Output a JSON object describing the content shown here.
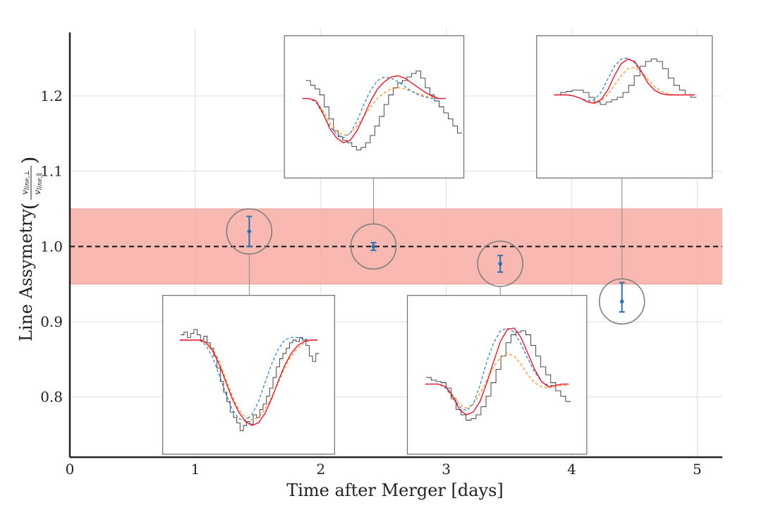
{
  "chart_data": {
    "type": "scatter",
    "xlabel": "Time after Merger [days]",
    "ylabel": "Line Assymetry",
    "ylabel_fraction": {
      "numerator": "v",
      "numerator_sub": "line,⊥",
      "denominator": "v",
      "denominator_sub": "line,∥"
    },
    "xlim": [
      0,
      5.2
    ],
    "ylim": [
      0.72,
      1.29
    ],
    "x_ticks": [
      0,
      1,
      2,
      3,
      4,
      5
    ],
    "y_ticks": [
      0.8,
      0.9,
      1.0,
      1.1,
      1.2
    ],
    "x_tick_labels": [
      "0",
      "1",
      "2",
      "3",
      "4",
      "5"
    ],
    "y_tick_labels": [
      "0.8",
      "0.9",
      "1.0",
      "1.1",
      "1.2"
    ],
    "grid": true,
    "reference_line": {
      "y": 1.0,
      "color": "#111111",
      "style": "dashed"
    },
    "band": {
      "y_low": 0.95,
      "y_high": 1.05,
      "color": "#f7a8a0"
    },
    "points_color": "#2c6fb5",
    "circle_color": "#7a7a7a",
    "points": [
      {
        "x": 1.43,
        "y": 1.02,
        "err_low": 0.02,
        "err_high": 0.02
      },
      {
        "x": 2.42,
        "y": 1.0,
        "err_low": 0.005,
        "err_high": 0.005
      },
      {
        "x": 3.43,
        "y": 0.977,
        "err_low": 0.011,
        "err_high": 0.011
      },
      {
        "x": 4.4,
        "y": 0.927,
        "err_low": 0.014,
        "err_high": 0.025
      }
    ],
    "insets": [
      {
        "point_index": 0,
        "box_x0": 0.74,
        "box_x1": 2.11,
        "box_y_top": 0.935,
        "box_y_bottom": 0.724,
        "spectrum": {
          "type": "absorption",
          "observed": [
            0.2,
            0.18,
            0.22,
            0.19,
            0.16,
            0.2,
            0.24,
            0.21,
            0.26,
            0.3,
            0.36,
            0.45,
            0.55,
            0.63,
            0.7,
            0.78,
            0.82,
            0.86,
            0.92,
            0.88,
            0.85,
            0.87,
            0.8,
            0.82,
            0.76,
            0.72,
            0.66,
            0.6,
            0.52,
            0.44,
            0.38,
            0.34,
            0.3,
            0.26,
            0.24,
            0.25,
            0.22,
            0.24,
            0.28,
            0.36,
            0.4,
            0.34
          ],
          "model_red": [
            0.24,
            0.24,
            0.24,
            0.24,
            0.26,
            0.32,
            0.42,
            0.55,
            0.68,
            0.78,
            0.85,
            0.88,
            0.86,
            0.79,
            0.68,
            0.55,
            0.43,
            0.34,
            0.28,
            0.25,
            0.24,
            0.24
          ],
          "model_blue": [
            0.24,
            0.24,
            0.24,
            0.24,
            0.28,
            0.37,
            0.5,
            0.64,
            0.76,
            0.83,
            0.84,
            0.8,
            0.7,
            0.56,
            0.42,
            0.31,
            0.24,
            0.22,
            0.22,
            0.23,
            0.24,
            0.24
          ],
          "model_orange": [
            0.24,
            0.24,
            0.24,
            0.24,
            0.25,
            0.3,
            0.4,
            0.53,
            0.66,
            0.76,
            0.82,
            0.84,
            0.82,
            0.76,
            0.67,
            0.56,
            0.45,
            0.36,
            0.3,
            0.26,
            0.24,
            0.24
          ]
        }
      },
      {
        "point_index": 1,
        "box_x0": 1.71,
        "box_x1": 3.14,
        "box_y_top": 1.28,
        "box_y_bottom": 1.091,
        "spectrum": {
          "type": "pcygni",
          "observed": [
            0.28,
            0.32,
            0.35,
            0.4,
            0.5,
            0.6,
            0.7,
            0.75,
            0.78,
            0.8,
            0.83,
            0.86,
            0.84,
            0.8,
            0.74,
            0.66,
            0.58,
            0.48,
            0.4,
            0.34,
            0.3,
            0.28,
            0.25,
            0.22,
            0.2,
            0.26,
            0.34,
            0.4,
            0.45,
            0.5,
            0.55,
            0.6,
            0.66,
            0.72
          ],
          "model_red": [
            0.43,
            0.43,
            0.45,
            0.55,
            0.68,
            0.76,
            0.8,
            0.78,
            0.7,
            0.58,
            0.45,
            0.35,
            0.29,
            0.25,
            0.24,
            0.26,
            0.3,
            0.34,
            0.38,
            0.41,
            0.43,
            0.43
          ],
          "model_blue": [
            0.43,
            0.43,
            0.46,
            0.56,
            0.66,
            0.73,
            0.76,
            0.72,
            0.62,
            0.48,
            0.36,
            0.28,
            0.25,
            0.26,
            0.29,
            0.33,
            0.37,
            0.4,
            0.42,
            0.43,
            0.43,
            0.43
          ],
          "model_orange": [
            0.43,
            0.43,
            0.45,
            0.53,
            0.63,
            0.7,
            0.74,
            0.72,
            0.66,
            0.58,
            0.5,
            0.43,
            0.38,
            0.35,
            0.34,
            0.35,
            0.37,
            0.39,
            0.41,
            0.42,
            0.43,
            0.43
          ]
        }
      },
      {
        "point_index": 2,
        "box_x0": 2.69,
        "box_x1": 4.12,
        "box_y_top": 0.935,
        "box_y_bottom": 0.724,
        "spectrum": {
          "type": "pcygni",
          "observed": [
            0.52,
            0.54,
            0.55,
            0.56,
            0.6,
            0.68,
            0.76,
            0.8,
            0.84,
            0.83,
            0.8,
            0.74,
            0.66,
            0.56,
            0.46,
            0.36,
            0.26,
            0.2,
            0.18,
            0.17,
            0.2,
            0.28,
            0.36,
            0.44,
            0.5,
            0.56,
            0.62,
            0.66,
            0.7
          ],
          "model_red": [
            0.57,
            0.57,
            0.57,
            0.59,
            0.66,
            0.76,
            0.8,
            0.78,
            0.7,
            0.56,
            0.4,
            0.25,
            0.16,
            0.15,
            0.22,
            0.34,
            0.46,
            0.55,
            0.59,
            0.58,
            0.57,
            0.57
          ],
          "model_blue": [
            0.57,
            0.57,
            0.57,
            0.6,
            0.67,
            0.74,
            0.77,
            0.72,
            0.58,
            0.4,
            0.26,
            0.17,
            0.15,
            0.18,
            0.27,
            0.38,
            0.48,
            0.55,
            0.58,
            0.58,
            0.57,
            0.57
          ],
          "model_orange": [
            0.57,
            0.57,
            0.57,
            0.59,
            0.65,
            0.72,
            0.75,
            0.72,
            0.64,
            0.54,
            0.44,
            0.37,
            0.34,
            0.36,
            0.42,
            0.5,
            0.56,
            0.59,
            0.6,
            0.59,
            0.58,
            0.58
          ]
        }
      },
      {
        "point_index": 3,
        "box_x0": 3.72,
        "box_x1": 5.12,
        "box_y_top": 1.28,
        "box_y_bottom": 1.091,
        "spectrum": {
          "type": "pcygni",
          "observed": [
            0.4,
            0.38,
            0.37,
            0.36,
            0.36,
            0.38,
            0.42,
            0.46,
            0.48,
            0.46,
            0.44,
            0.42,
            0.38,
            0.32,
            0.24,
            0.16,
            0.12,
            0.1,
            0.12,
            0.18,
            0.26,
            0.32,
            0.36,
            0.4,
            0.42
          ],
          "model_red": [
            0.4,
            0.4,
            0.4,
            0.41,
            0.43,
            0.46,
            0.47,
            0.44,
            0.36,
            0.24,
            0.14,
            0.1,
            0.12,
            0.2,
            0.3,
            0.36,
            0.39,
            0.4,
            0.4,
            0.4,
            0.4,
            0.4
          ],
          "model_blue": [
            0.4,
            0.4,
            0.4,
            0.41,
            0.43,
            0.45,
            0.44,
            0.38,
            0.27,
            0.16,
            0.1,
            0.09,
            0.13,
            0.21,
            0.3,
            0.36,
            0.39,
            0.4,
            0.4,
            0.4,
            0.4,
            0.4
          ],
          "model_orange": [
            0.4,
            0.4,
            0.4,
            0.41,
            0.43,
            0.45,
            0.46,
            0.45,
            0.4,
            0.32,
            0.24,
            0.18,
            0.17,
            0.2,
            0.27,
            0.33,
            0.37,
            0.39,
            0.4,
            0.4,
            0.4,
            0.4
          ]
        }
      }
    ],
    "inset_line_colors": {
      "observed": "#333333",
      "red": "#e8162b",
      "blue": "#2c78c8",
      "orange": "#ff8c1a"
    }
  }
}
